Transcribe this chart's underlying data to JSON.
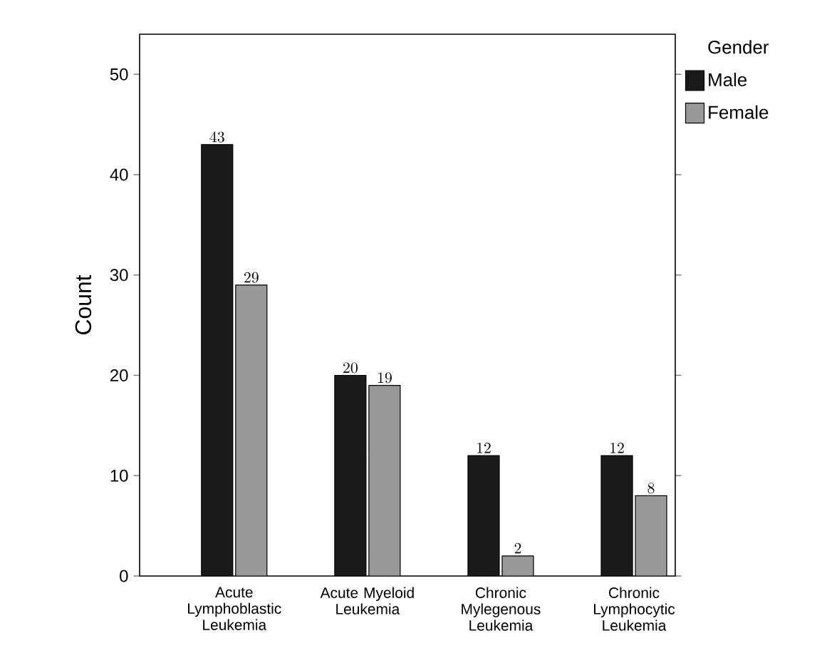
{
  "chart_data": {
    "type": "bar",
    "ylabel": "Count",
    "legend_title": "Gender",
    "categories": [
      "Acute Lymphoblastic Leukemia",
      "Acute Myeloid Leukemia",
      "Chronic Mylegenous Leukemia",
      "Chronic Lymphocytic Leukemia"
    ],
    "series": [
      {
        "name": "Male",
        "color": "#1a1a1a",
        "values": [
          43,
          20,
          12,
          12
        ]
      },
      {
        "name": "Female",
        "color": "#999999",
        "values": [
          29,
          19,
          2,
          8
        ]
      }
    ],
    "ylim": [
      0,
      54
    ],
    "yticks": [
      0,
      10,
      20,
      30,
      40,
      50
    ],
    "data_labels": true,
    "legend": "top right",
    "grid": false
  }
}
